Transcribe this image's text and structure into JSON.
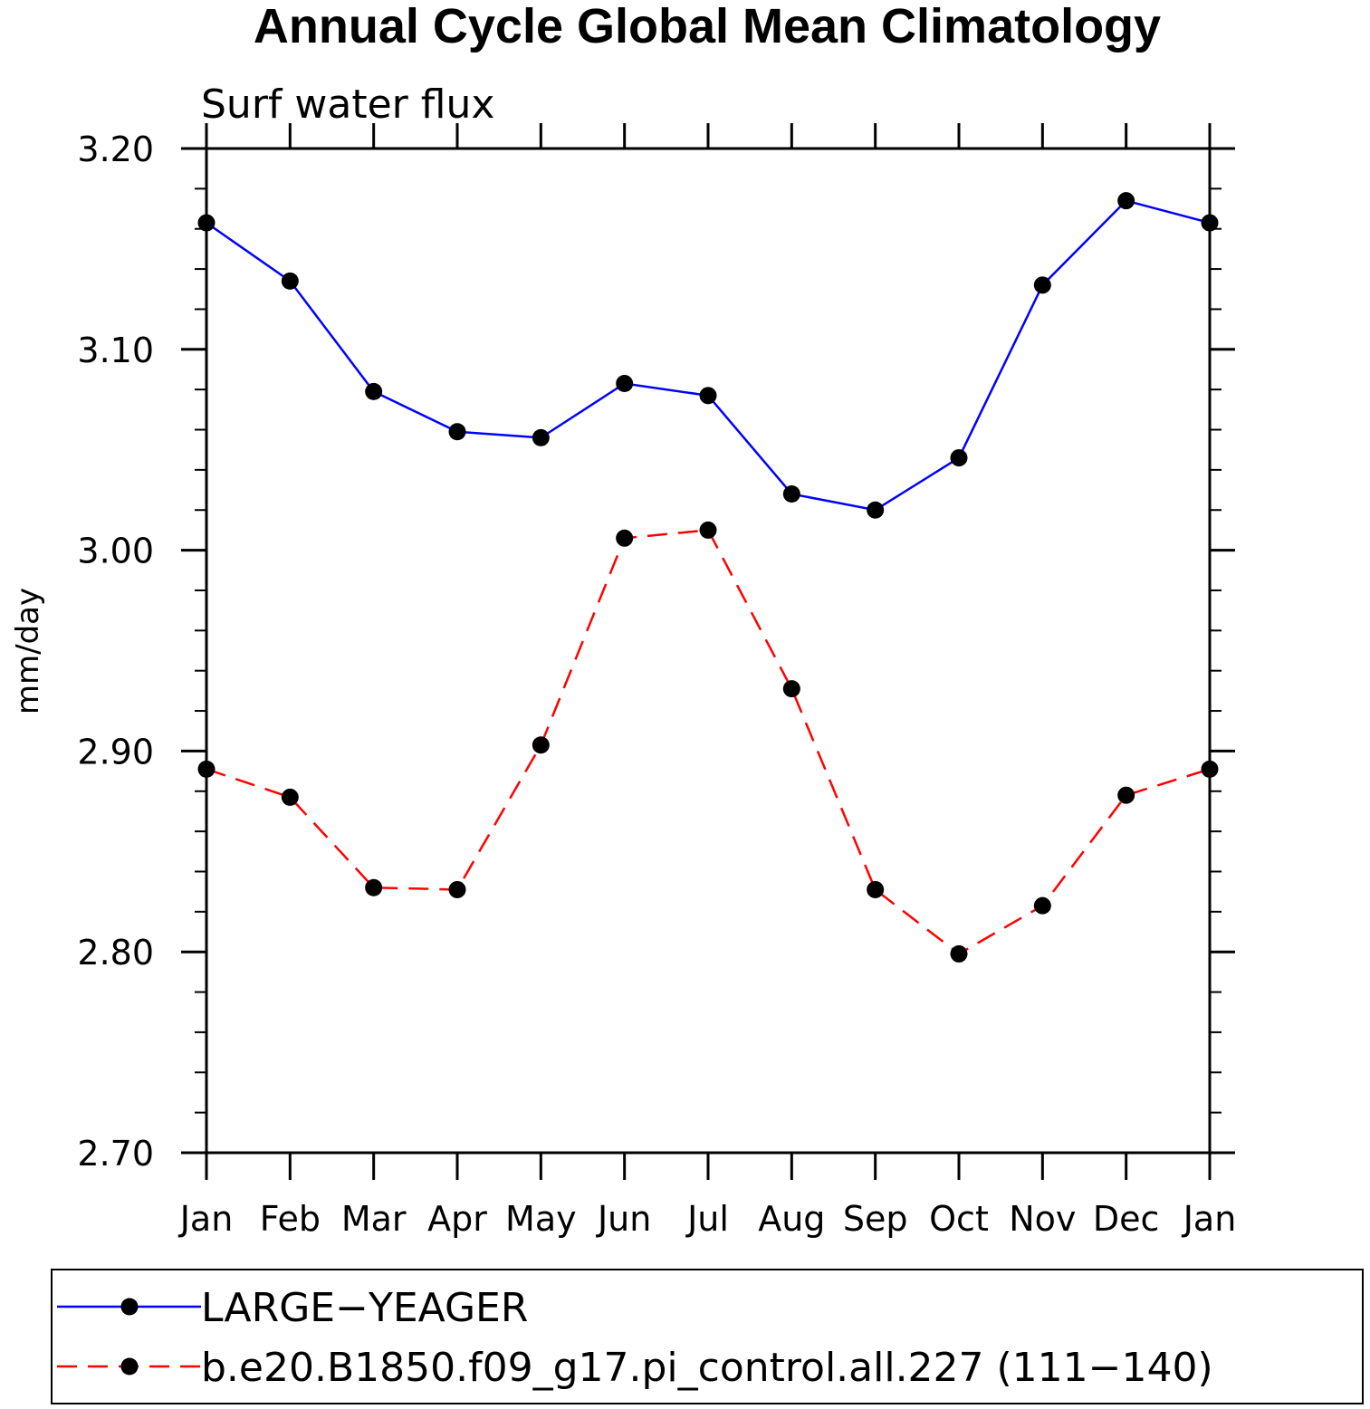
{
  "chart_data": {
    "type": "line",
    "title": "Annual Cycle Global Mean Climatology",
    "subtitle": "Surf water flux",
    "xlabel": "",
    "ylabel": "mm/day",
    "categories": [
      "Jan",
      "Feb",
      "Mar",
      "Apr",
      "May",
      "Jun",
      "Jul",
      "Aug",
      "Sep",
      "Oct",
      "Nov",
      "Dec",
      "Jan"
    ],
    "ylim": [
      2.7,
      3.2
    ],
    "yticks": [
      "2.70",
      "2.80",
      "2.90",
      "3.00",
      "3.10",
      "3.20"
    ],
    "ytick_values": [
      2.7,
      2.8,
      2.9,
      3.0,
      3.1,
      3.2
    ],
    "yminor_step": 0.02,
    "grid": false,
    "legend_position": "bottom",
    "series": [
      {
        "name": "LARGE−YEAGER",
        "color": "#0000ff",
        "style": "solid",
        "values": [
          3.163,
          3.134,
          3.079,
          3.059,
          3.056,
          3.083,
          3.077,
          3.028,
          3.02,
          3.046,
          3.132,
          3.174,
          3.163
        ]
      },
      {
        "name": "b.e20.B1850.f09_g17.pi_control.all.227 (111−140)",
        "color": "#ff0000",
        "style": "dashed",
        "values": [
          2.891,
          2.877,
          2.832,
          2.831,
          2.903,
          3.006,
          3.01,
          2.931,
          2.831,
          2.799,
          2.823,
          2.878,
          2.891
        ]
      }
    ]
  }
}
